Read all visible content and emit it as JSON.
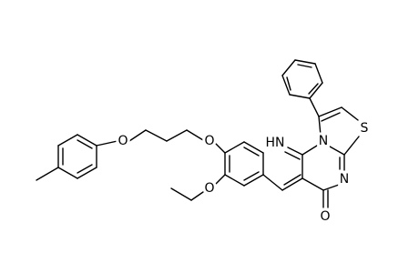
{
  "atoms": [
    {
      "label": "O"
    },
    {
      "label": "O"
    },
    {
      "label": "O"
    },
    {
      "label": "HN"
    },
    {
      "label": "N"
    },
    {
      "label": "S"
    },
    {
      "label": "N"
    },
    {
      "label": "O"
    }
  ]
}
